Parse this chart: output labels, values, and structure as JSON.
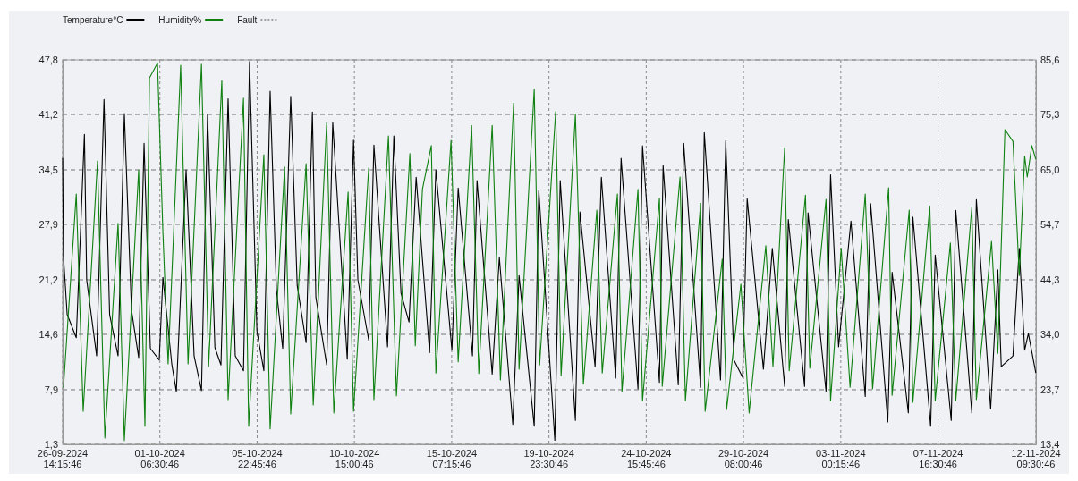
{
  "chart_data": {
    "type": "line",
    "xlim": [
      "2024-09-26T14:15:46",
      "2024-11-12T09:30:46"
    ],
    "xticks": [
      {
        "value": "2024-09-26T14:15:46",
        "label": "26-09-2024 14:15:46"
      },
      {
        "value": "2024-10-01T06:30:46",
        "label": "01-10-2024 06:30:46"
      },
      {
        "value": "2024-10-05T22:45:46",
        "label": "05-10-2024 22:45:46"
      },
      {
        "value": "2024-10-10T15:00:46",
        "label": "10-10-2024 15:00:46"
      },
      {
        "value": "2024-10-15T07:15:46",
        "label": "15-10-2024 07:15:46"
      },
      {
        "value": "2024-10-19T23:30:46",
        "label": "19-10-2024 23:30:46"
      },
      {
        "value": "2024-10-24T15:45:46",
        "label": "24-10-2024 15:45:46"
      },
      {
        "value": "2024-10-29T08:00:46",
        "label": "29-10-2024 08:00:46"
      },
      {
        "value": "2024-11-03T00:15:46",
        "label": "03-11-2024 00:15:46"
      },
      {
        "value": "2024-11-07T16:30:46",
        "label": "07-11-2024 16:30:46"
      },
      {
        "value": "2024-11-12T09:30:46",
        "label": "12-11-2024 09:30:46"
      }
    ],
    "ylim": [
      1.3,
      47.8
    ],
    "yticks": [
      {
        "value": 1.3,
        "label": "1,3"
      },
      {
        "value": 7.9,
        "label": "7,9"
      },
      {
        "value": 14.6,
        "label": "14,6"
      },
      {
        "value": 21.2,
        "label": "21,2"
      },
      {
        "value": 27.9,
        "label": "27,9"
      },
      {
        "value": 34.5,
        "label": "34,5"
      },
      {
        "value": 41.2,
        "label": "41,2"
      },
      {
        "value": 47.8,
        "label": "47,8"
      }
    ],
    "y2lim": [
      13.4,
      85.6
    ],
    "y2ticks": [
      {
        "value": 13.4,
        "label": "13,4"
      },
      {
        "value": 23.7,
        "label": "23,7"
      },
      {
        "value": 34.0,
        "label": "34,0"
      },
      {
        "value": 44.3,
        "label": "44,3"
      },
      {
        "value": 54.7,
        "label": "54,7"
      },
      {
        "value": 65.0,
        "label": "65,0"
      },
      {
        "value": 75.3,
        "label": "75,3"
      },
      {
        "value": 85.6,
        "label": "85,6"
      }
    ],
    "grid": true,
    "legend": "top left",
    "line_style": "solid",
    "marker": "none",
    "series": [
      {
        "name": "Temperature°C",
        "color": "#000000",
        "x": [
          "2024-09-26T14:16",
          "2024-09-26T15:15",
          "2024-09-26T19:30",
          "2024-09-27T06:00",
          "2024-09-27T15:24",
          "2024-09-27T18:00",
          "2024-09-28T05:30",
          "2024-09-28T14:00",
          "2024-09-28T20:30",
          "2024-09-29T06:15",
          "2024-09-29T13:30",
          "2024-09-29T21:45",
          "2024-09-30T06:00",
          "2024-09-30T12:15",
          "2024-09-30T19:30",
          "2024-10-01T05:45",
          "2024-10-01T10:00",
          "2024-10-01T20:15",
          "2024-10-02T01:30",
          "2024-10-02T12:45",
          "2024-10-02T22:00",
          "2024-10-03T06:30",
          "2024-10-03T13:30",
          "2024-10-03T22:00",
          "2024-10-04T05:00",
          "2024-10-04T13:15",
          "2024-10-04T21:30",
          "2024-10-05T07:00",
          "2024-10-05T14:00",
          "2024-10-05T22:30",
          "2024-10-06T06:30",
          "2024-10-06T13:45",
          "2024-10-06T21:00",
          "2024-10-07T04:15",
          "2024-10-07T13:30",
          "2024-10-07T21:00",
          "2024-10-08T07:15",
          "2024-10-08T14:30",
          "2024-10-08T18:30",
          "2024-10-09T07:00",
          "2024-10-09T14:00",
          "2024-10-10T06:45",
          "2024-10-10T14:00",
          "2024-10-10T19:00",
          "2024-10-11T07:30",
          "2024-10-11T13:30",
          "2024-10-12T05:15",
          "2024-10-12T12:30",
          "2024-10-12T20:45",
          "2024-10-13T06:00",
          "2024-10-13T14:15",
          "2024-10-14T05:45",
          "2024-10-14T13:00",
          "2024-10-15T07:30",
          "2024-10-15T14:45",
          "2024-10-16T07:15",
          "2024-10-16T12:30",
          "2024-10-17T06:00",
          "2024-10-17T14:15",
          "2024-10-18T05:45",
          "2024-10-18T13:00",
          "2024-10-19T06:30",
          "2024-10-19T11:45",
          "2024-10-20T06:15",
          "2024-10-20T12:30",
          "2024-10-21T06:00",
          "2024-10-21T11:15",
          "2024-10-22T04:45",
          "2024-10-22T12:00",
          "2024-10-23T04:30",
          "2024-10-23T10:45",
          "2024-10-24T06:15",
          "2024-10-24T11:30",
          "2024-10-25T07:00",
          "2024-10-25T11:15",
          "2024-10-26T04:45",
          "2024-10-26T11:00",
          "2024-10-27T06:30",
          "2024-10-27T10:45",
          "2024-10-28T05:30",
          "2024-10-28T11:30",
          "2024-10-28T21:00",
          "2024-10-29T07:00",
          "2024-10-29T12:15",
          "2024-10-30T07:00",
          "2024-10-30T17:15",
          "2024-10-31T07:30",
          "2024-10-31T11:45",
          "2024-11-01T06:30",
          "2024-11-01T10:30",
          "2024-11-02T07:15",
          "2024-11-02T12:30",
          "2024-11-02T21:45",
          "2024-11-03T12:00",
          "2024-11-04T04:30",
          "2024-11-04T10:45",
          "2024-11-05T06:30",
          "2024-11-05T11:30",
          "2024-11-06T06:15",
          "2024-11-06T11:30",
          "2024-11-07T08:00",
          "2024-11-07T13:15",
          "2024-11-08T07:45",
          "2024-11-08T13:00",
          "2024-11-09T07:30",
          "2024-11-09T12:45",
          "2024-11-10T05:15",
          "2024-11-10T13:30",
          "2024-11-10T17:30",
          "2024-11-11T07:00",
          "2024-11-11T14:15",
          "2024-11-11T20:30",
          "2024-11-12T00:45",
          "2024-11-12T09:15"
        ],
        "values": [
          35.9,
          24.0,
          17.0,
          14.2,
          38.8,
          21.2,
          12.0,
          43.0,
          17.0,
          12.0,
          41.3,
          17.5,
          11.8,
          37.7,
          12.9,
          11.5,
          21.5,
          11.0,
          7.7,
          34.5,
          12.0,
          7.8,
          41.2,
          13.0,
          10.9,
          43.1,
          12.0,
          10.2,
          47.6,
          15.0,
          10.2,
          44.0,
          20.0,
          12.9,
          43.4,
          20.5,
          13.6,
          41.5,
          19.1,
          10.9,
          40.2,
          11.6,
          38.1,
          21.2,
          13.9,
          37.5,
          13.1,
          38.6,
          19.6,
          16.1,
          33.6,
          12.4,
          34.5,
          12.7,
          32.3,
          12.0,
          33.2,
          9.8,
          23.9,
          3.7,
          21.7,
          3.5,
          32.1,
          1.8,
          33.2,
          4.2,
          29.4,
          10.7,
          33.6,
          9.3,
          35.9,
          8.0,
          37.4,
          8.8,
          35.0,
          8.5,
          37.7,
          8.2,
          39.0,
          9.1,
          38.0,
          11.5,
          9.4,
          31.0,
          10.4,
          25.0,
          8.3,
          28.5,
          8.3,
          29.3,
          7.7,
          33.9,
          13.1,
          28.3,
          7.1,
          30.4,
          4.0,
          22.1,
          5.1,
          28.8,
          3.5,
          24.2,
          4.2,
          29.6,
          5.1,
          30.9,
          5.6,
          22.4,
          10.7,
          12.0,
          25.0,
          12.7,
          14.7,
          10.0
        ]
      },
      {
        "name": "Humidity%",
        "color": "#108010",
        "axis": "y2",
        "x": [
          "2024-09-26T15:15",
          "2024-09-27T06:00",
          "2024-09-27T14:00",
          "2024-09-28T06:30",
          "2024-09-28T15:00",
          "2024-09-29T06:15",
          "2024-09-29T13:30",
          "2024-09-30T06:00",
          "2024-09-30T13:15",
          "2024-09-30T18:30",
          "2024-10-01T03:45",
          "2024-10-01T10:00",
          "2024-10-01T16:00",
          "2024-10-02T06:30",
          "2024-10-02T15:00",
          "2024-10-03T06:30",
          "2024-10-03T14:45",
          "2024-10-04T06:00",
          "2024-10-04T13:15",
          "2024-10-05T07:00",
          "2024-10-05T13:00",
          "2024-10-06T06:30",
          "2024-10-06T13:45",
          "2024-10-07T06:30",
          "2024-10-07T13:30",
          "2024-10-08T07:15",
          "2024-10-08T15:30",
          "2024-10-09T07:00",
          "2024-10-09T15:15",
          "2024-10-10T07:45",
          "2024-10-10T14:00",
          "2024-10-11T07:30",
          "2024-10-11T13:30",
          "2024-10-12T06:15",
          "2024-10-12T15:30",
          "2024-10-13T07:00",
          "2024-10-13T13:15",
          "2024-10-13T21:30",
          "2024-10-14T07:45",
          "2024-10-14T13:00",
          "2024-10-15T06:30",
          "2024-10-15T14:45",
          "2024-10-16T06:15",
          "2024-10-16T14:30",
          "2024-10-17T06:00",
          "2024-10-17T15:30",
          "2024-10-18T06:45",
          "2024-10-18T13:00",
          "2024-10-19T06:30",
          "2024-10-19T12:45",
          "2024-10-20T07:15",
          "2024-10-20T13:30",
          "2024-10-21T06:00",
          "2024-10-21T15:15",
          "2024-10-22T06:45",
          "2024-10-22T13:00",
          "2024-10-23T06:30",
          "2024-10-23T11:45",
          "2024-10-24T06:15",
          "2024-10-24T11:30",
          "2024-10-25T07:00",
          "2024-10-25T10:15",
          "2024-10-26T06:45",
          "2024-10-26T13:00",
          "2024-10-27T06:30",
          "2024-10-27T11:45",
          "2024-10-28T07:30",
          "2024-10-28T12:30",
          "2024-10-29T05:00",
          "2024-10-29T14:30",
          "2024-10-30T09:45",
          "2024-10-30T18:00",
          "2024-10-31T07:30",
          "2024-10-31T12:45",
          "2024-11-01T07:30",
          "2024-11-01T12:30",
          "2024-11-02T07:15",
          "2024-11-02T12:30",
          "2024-11-03T00:45",
          "2024-11-03T11:00",
          "2024-11-04T04:30",
          "2024-11-04T13:00",
          "2024-11-05T07:30",
          "2024-11-05T11:30",
          "2024-11-06T07:15",
          "2024-11-06T11:30",
          "2024-11-07T07:00",
          "2024-11-07T13:15",
          "2024-11-08T06:45",
          "2024-11-08T13:00",
          "2024-11-09T07:30",
          "2024-11-09T12:45",
          "2024-11-10T06:15",
          "2024-11-10T13:30",
          "2024-11-10T21:45",
          "2024-11-11T07:00",
          "2024-11-11T14:15",
          "2024-11-11T20:30",
          "2024-11-11T23:30",
          "2024-11-12T04:45",
          "2024-11-12T09:15"
        ],
        "values": [
          24.1,
          60.4,
          19.6,
          66.6,
          14.6,
          54.9,
          14.1,
          64.9,
          16.8,
          82.2,
          85.0,
          53.2,
          28.5,
          84.6,
          28.5,
          84.8,
          28.0,
          81.7,
          21.8,
          78.4,
          16.8,
          67.8,
          16.3,
          65.5,
          19.1,
          66.1,
          20.8,
          73.8,
          19.3,
          60.8,
          19.6,
          65.3,
          21.8,
          71.3,
          22.5,
          68.0,
          31.9,
          61.3,
          69.5,
          26.8,
          70.5,
          28.9,
          73.3,
          26.7,
          73.3,
          25.5,
          77.5,
          27.5,
          80.1,
          28.3,
          75.9,
          26.3,
          75.4,
          24.7,
          57.4,
          26.8,
          60.4,
          23.3,
          61.3,
          21.6,
          59.6,
          24.3,
          63.6,
          21.6,
          58.7,
          19.6,
          48.2,
          19.9,
          43.5,
          19.3,
          50.7,
          28.0,
          69.1,
          27.2,
          60.2,
          27.7,
          59.4,
          21.6,
          50.2,
          24.1,
          60.4,
          23.8,
          61.6,
          22.6,
          57.4,
          21.3,
          58.2,
          21.6,
          51.2,
          21.6,
          57.9,
          21.8,
          51.5,
          30.5,
          72.5,
          70.3,
          45.1,
          67.5,
          63.6,
          69.5,
          67.0
        ]
      },
      {
        "name": "Fault",
        "color": "#a0a0a0",
        "line_style": "dotted"
      }
    ]
  }
}
